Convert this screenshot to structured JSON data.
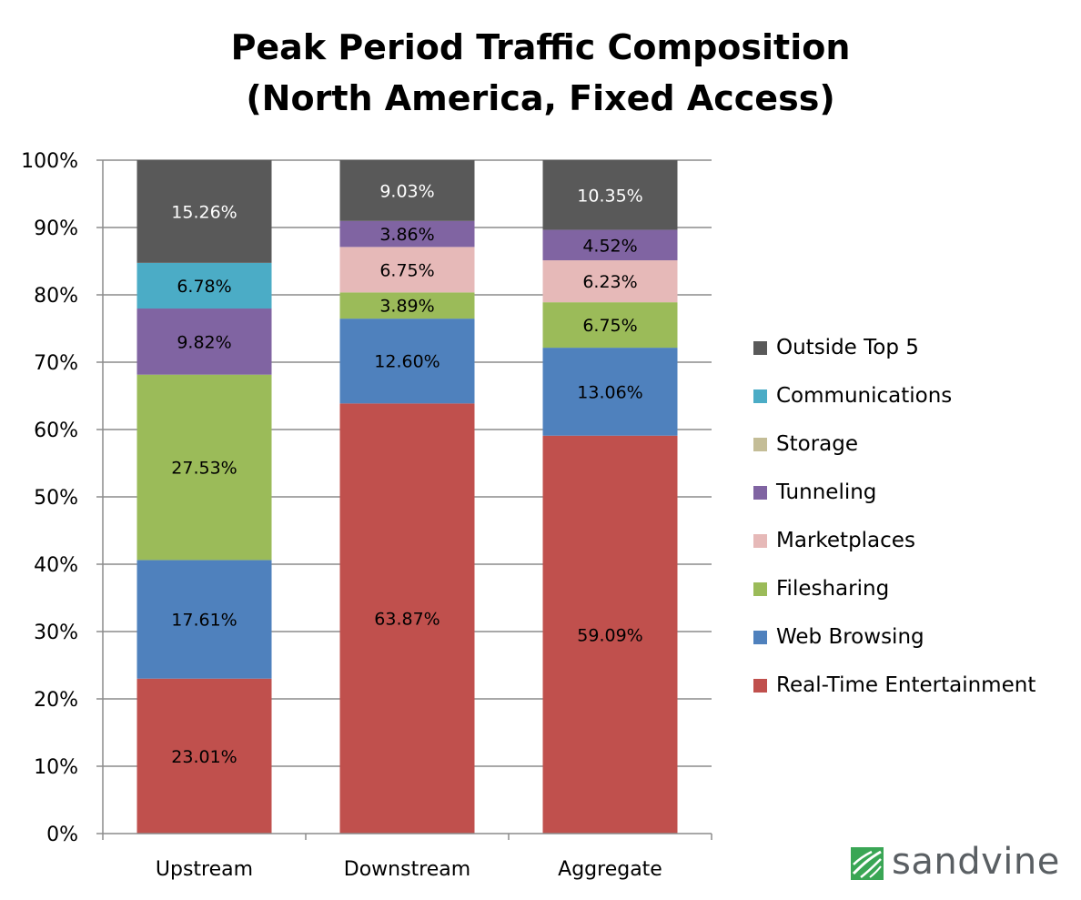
{
  "chart_data": {
    "type": "bar",
    "stacked": true,
    "title_line1": "Peak Period Traffic Composition",
    "title_line2": "(North America, Fixed Access)",
    "xlabel": "",
    "ylabel": "",
    "ylim": [
      0,
      100
    ],
    "yticks": [
      "0%",
      "10%",
      "20%",
      "30%",
      "40%",
      "50%",
      "60%",
      "70%",
      "80%",
      "90%",
      "100%"
    ],
    "grid": true,
    "legend_position": "right",
    "categories": [
      "Upstream",
      "Downstream",
      "Aggregate"
    ],
    "series": [
      {
        "name": "Real-Time Entertainment",
        "color": "#c0504d",
        "values": [
          23.01,
          63.87,
          59.09
        ],
        "labels": [
          "23.01%",
          "63.87%",
          "59.09%"
        ]
      },
      {
        "name": "Web Browsing",
        "color": "#4f81bd",
        "values": [
          17.61,
          12.6,
          13.06
        ],
        "labels": [
          "17.61%",
          "12.60%",
          "13.06%"
        ]
      },
      {
        "name": "Filesharing",
        "color": "#9bbb59",
        "values": [
          27.53,
          3.89,
          6.75
        ],
        "labels": [
          "27.53%",
          "3.89%",
          "6.75%"
        ]
      },
      {
        "name": "Marketplaces",
        "color": "#e6b9b8",
        "values": [
          0,
          6.75,
          6.23
        ],
        "labels": [
          "",
          "6.75%",
          "6.23%"
        ]
      },
      {
        "name": "Tunneling",
        "color": "#8064a2",
        "values": [
          9.82,
          3.86,
          4.52
        ],
        "labels": [
          "9.82%",
          "3.86%",
          "4.52%"
        ]
      },
      {
        "name": "Storage",
        "color": "#c4bd97",
        "values": [
          0,
          0,
          0
        ],
        "labels": [
          "",
          "",
          ""
        ]
      },
      {
        "name": "Communications",
        "color": "#4bacc6",
        "values": [
          6.78,
          0,
          0
        ],
        "labels": [
          "6.78%",
          "",
          ""
        ]
      },
      {
        "name": "Outside Top 5",
        "color": "#595959",
        "values": [
          15.26,
          9.03,
          10.35
        ],
        "labels": [
          "15.26%",
          "9.03%",
          "10.35%"
        ]
      }
    ],
    "legend_order": [
      "Outside Top 5",
      "Communications",
      "Storage",
      "Tunneling",
      "Marketplaces",
      "Filesharing",
      "Web Browsing",
      "Real-Time Entertainment"
    ]
  },
  "logo": {
    "text": "sandvine",
    "mark_color": "#3aa655"
  }
}
